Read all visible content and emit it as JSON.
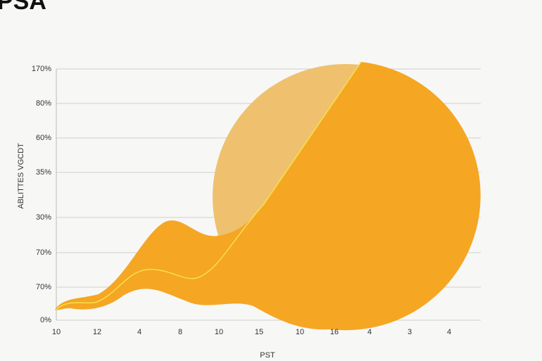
{
  "chart_data": {
    "type": "area",
    "title": "PSA",
    "y_axis_label": "ABLITTES VGCDT",
    "x_axis_label": "PST",
    "y_categories": [
      "0%",
      "70%",
      "70%",
      "30%",
      "35%",
      "60%",
      "80%",
      "170%"
    ],
    "categories": [
      "10",
      "12",
      "4",
      "8",
      "10",
      "15",
      "10",
      "16",
      "4",
      "3",
      "4"
    ],
    "grid": true
  }
}
